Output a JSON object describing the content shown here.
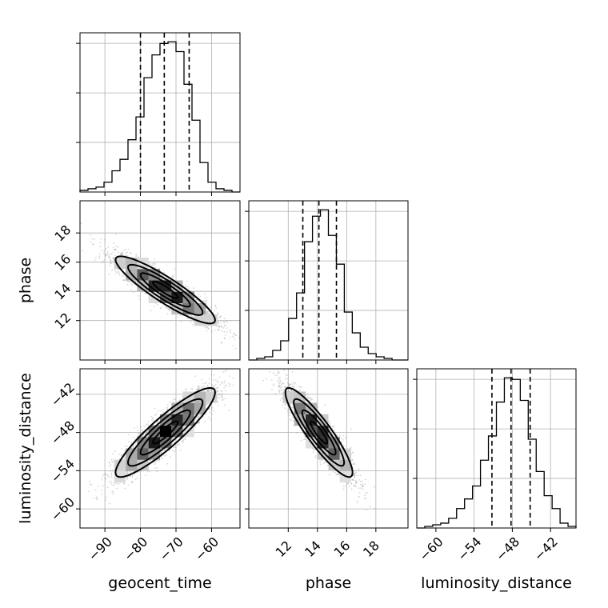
{
  "chart_data": {
    "type": "corner",
    "parameters": [
      "geocent_time",
      "phase",
      "luminosity_distance"
    ],
    "axes": {
      "geocent_time": {
        "xlim": [
          -97,
          -52
        ],
        "ticks": [
          -90,
          -80,
          -70,
          -60
        ],
        "tick_labels": [
          "−90",
          "−80",
          "−70",
          "−60"
        ]
      },
      "phase": {
        "xlim": [
          9.3,
          20.2
        ],
        "ticks": [
          12,
          14,
          16,
          18
        ],
        "tick_labels": [
          "12",
          "14",
          "16",
          "18"
        ]
      },
      "luminosity_distance": {
        "xlim": [
          -63,
          -38
        ],
        "ticks": [
          -60,
          -54,
          -48,
          -42
        ],
        "tick_labels": [
          "−60",
          "−54",
          "−48",
          "−42"
        ]
      }
    },
    "marginals": [
      {
        "param": "geocent_time",
        "quantiles": [
          -80,
          -73.3,
          -66.3
        ],
        "edges": [
          -97,
          -94.75,
          -92.5,
          -90.25,
          -88,
          -85.75,
          -83.5,
          -81.25,
          -79,
          -76.75,
          -74.5,
          -72.25,
          -70,
          -67.75,
          -65.5,
          -63.25,
          -61,
          -58.75,
          -56.5,
          -54.25,
          -52
        ],
        "counts": [
          1,
          2,
          3,
          6,
          13,
          20,
          32,
          46,
          70,
          84,
          91,
          92,
          86,
          66,
          44,
          18,
          6,
          2,
          1,
          0
        ]
      },
      {
        "param": "phase",
        "quantiles": [
          13,
          14.1,
          15.3
        ],
        "edges": [
          9.3,
          9.845,
          10.39,
          10.935,
          11.48,
          12.025,
          12.57,
          13.115,
          13.66,
          14.205,
          14.75,
          15.295,
          15.84,
          16.385,
          16.93,
          17.475,
          18.02,
          18.565,
          19.11,
          19.655,
          20.2
        ],
        "counts": [
          0,
          1,
          2,
          6,
          12,
          26,
          42,
          74,
          90,
          94,
          78,
          60,
          30,
          17,
          8,
          4,
          2,
          1,
          0,
          0
        ]
      },
      {
        "param": "luminosity_distance",
        "quantiles": [
          -51.2,
          -48.2,
          -45.2
        ],
        "edges": [
          -63,
          -61.75,
          -60.5,
          -59.25,
          -58,
          -56.75,
          -55.5,
          -54.25,
          -53,
          -51.75,
          -50.5,
          -49.25,
          -48,
          -46.75,
          -45.5,
          -44.25,
          -43,
          -41.75,
          -40.5,
          -39.25,
          -38
        ],
        "counts": [
          0,
          1,
          2,
          3,
          6,
          12,
          18,
          26,
          42,
          57,
          78,
          93,
          92,
          79,
          55,
          35,
          20,
          12,
          3,
          1
        ]
      }
    ],
    "joint": [
      {
        "x": "geocent_time",
        "y": "phase",
        "center": [
          -73,
          14.1
        ],
        "sd": [
          7,
          1.15
        ],
        "corr": -0.9
      },
      {
        "x": "geocent_time",
        "y": "luminosity_distance",
        "center": [
          -73,
          -48
        ],
        "sd": [
          7,
          3.5
        ],
        "corr": 0.9
      },
      {
        "x": "phase",
        "y": "luminosity_distance",
        "center": [
          14.1,
          -48
        ],
        "sd": [
          1.15,
          3.5
        ],
        "corr": -0.9
      }
    ],
    "contour_levels_sigma": [
      0.5,
      1,
      1.5,
      2
    ]
  }
}
